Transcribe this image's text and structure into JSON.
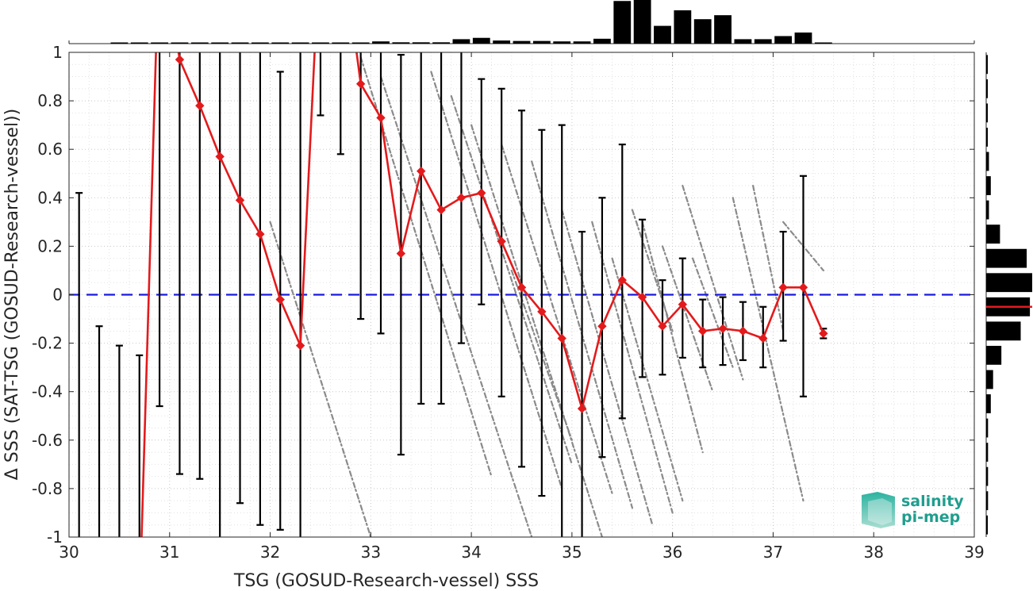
{
  "chart_data": {
    "type": "line",
    "xlabel": "TSG (GOSUD-Research-vessel) SSS",
    "ylabel": "Δ SSS (SAT-TSG (GOSUD-Research-vessel))",
    "xlim": [
      30,
      39
    ],
    "ylim": [
      -1,
      1
    ],
    "xticks": [
      "30",
      "31",
      "32",
      "33",
      "34",
      "35",
      "36",
      "37",
      "38",
      "39"
    ],
    "yticks": [
      "-1",
      "-0.8",
      "-0.6",
      "-0.4",
      "-0.2",
      "0",
      "0.2",
      "0.4",
      "0.6",
      "0.8",
      "1"
    ],
    "grid": true,
    "zero_line": {
      "y": 0,
      "color": "#1a1adb",
      "style": "dashed"
    },
    "series": [
      {
        "color": "#e31a1c",
        "marker": "diamond",
        "x": [
          30.7,
          30.9,
          31.1,
          31.3,
          31.5,
          31.7,
          31.9,
          32.1,
          32.3,
          32.5,
          32.7,
          32.9,
          33.1,
          33.3,
          33.5,
          33.7,
          33.9,
          34.1,
          34.3,
          34.5,
          34.7,
          34.9,
          35.1,
          35.3,
          35.5,
          35.7,
          35.9,
          36.1,
          36.3,
          36.5,
          36.7,
          36.9,
          37.1,
          37.3,
          37.5
        ],
        "y": [
          -1.3,
          1.5,
          0.97,
          0.78,
          0.57,
          0.39,
          0.25,
          -0.02,
          -0.21,
          1.5,
          1.5,
          0.87,
          0.73,
          0.17,
          0.51,
          0.35,
          0.4,
          0.42,
          0.22,
          0.03,
          -0.07,
          -0.18,
          -0.47,
          -0.13,
          0.06,
          -0.01,
          -0.13,
          -0.04,
          -0.15,
          -0.14,
          -0.15,
          -0.18,
          0.03,
          0.03,
          -0.16
        ]
      }
    ],
    "error_bars": [
      {
        "x": 30.1,
        "low": -1.0,
        "high": 0.42
      },
      {
        "x": 30.3,
        "low": -1.0,
        "high": -0.13
      },
      {
        "x": 30.5,
        "low": -1.0,
        "high": -0.21
      },
      {
        "x": 30.7,
        "low": -1.0,
        "high": -0.25
      },
      {
        "x": 30.9,
        "low": -0.46,
        "high": 1.0
      },
      {
        "x": 31.1,
        "low": -0.74,
        "high": 1.0
      },
      {
        "x": 31.3,
        "low": -0.76,
        "high": 1.0
      },
      {
        "x": 31.5,
        "low": -1.0,
        "high": 1.0
      },
      {
        "x": 31.7,
        "low": -0.86,
        "high": 1.0
      },
      {
        "x": 31.9,
        "low": -0.95,
        "high": 1.0
      },
      {
        "x": 32.1,
        "low": -0.97,
        "high": 0.92
      },
      {
        "x": 32.3,
        "low": -1.0,
        "high": 1.0
      },
      {
        "x": 32.5,
        "low": 0.74,
        "high": 1.0
      },
      {
        "x": 32.7,
        "low": 0.58,
        "high": 1.0
      },
      {
        "x": 32.9,
        "low": -0.1,
        "high": 1.0
      },
      {
        "x": 33.1,
        "low": -0.16,
        "high": 1.0
      },
      {
        "x": 33.3,
        "low": -0.66,
        "high": 0.99
      },
      {
        "x": 33.5,
        "low": -0.45,
        "high": 1.0
      },
      {
        "x": 33.7,
        "low": -0.45,
        "high": 1.0
      },
      {
        "x": 33.9,
        "low": -0.2,
        "high": 1.0
      },
      {
        "x": 34.1,
        "low": -0.04,
        "high": 0.89
      },
      {
        "x": 34.3,
        "low": -0.42,
        "high": 0.85
      },
      {
        "x": 34.5,
        "low": -0.71,
        "high": 0.76
      },
      {
        "x": 34.7,
        "low": -0.83,
        "high": 0.68
      },
      {
        "x": 34.9,
        "low": -1.0,
        "high": 0.7
      },
      {
        "x": 35.1,
        "low": -1.0,
        "high": 0.26
      },
      {
        "x": 35.3,
        "low": -0.67,
        "high": 0.4
      },
      {
        "x": 35.5,
        "low": -0.51,
        "high": 0.62
      },
      {
        "x": 35.7,
        "low": -0.34,
        "high": 0.31
      },
      {
        "x": 35.9,
        "low": -0.33,
        "high": 0.06
      },
      {
        "x": 36.1,
        "low": -0.26,
        "high": 0.15
      },
      {
        "x": 36.3,
        "low": -0.3,
        "high": -0.02
      },
      {
        "x": 36.5,
        "low": -0.29,
        "high": -0.01
      },
      {
        "x": 36.7,
        "low": -0.27,
        "high": -0.03
      },
      {
        "x": 36.9,
        "low": -0.3,
        "high": -0.05
      },
      {
        "x": 37.1,
        "low": -0.19,
        "high": 0.26
      },
      {
        "x": 37.3,
        "low": -0.42,
        "high": 0.49
      },
      {
        "x": 37.5,
        "low": -0.18,
        "high": -0.14
      }
    ],
    "scatter_streaks": [
      {
        "x1": 32.0,
        "y1": 0.3,
        "x2": 33.0,
        "y2": -1.0
      },
      {
        "x1": 32.9,
        "y1": 0.98,
        "x2": 34.2,
        "y2": -0.75
      },
      {
        "x1": 33.1,
        "y1": 0.9,
        "x2": 34.6,
        "y2": -1.0
      },
      {
        "x1": 33.6,
        "y1": 0.92,
        "x2": 34.9,
        "y2": -0.8
      },
      {
        "x1": 33.8,
        "y1": 0.82,
        "x2": 35.0,
        "y2": -0.7
      },
      {
        "x1": 34.0,
        "y1": 0.7,
        "x2": 35.3,
        "y2": -1.0
      },
      {
        "x1": 34.3,
        "y1": 0.62,
        "x2": 35.4,
        "y2": -0.82
      },
      {
        "x1": 34.6,
        "y1": 0.55,
        "x2": 35.6,
        "y2": -0.88
      },
      {
        "x1": 34.9,
        "y1": 0.35,
        "x2": 35.8,
        "y2": -0.95
      },
      {
        "x1": 35.2,
        "y1": 0.3,
        "x2": 36.0,
        "y2": -0.9
      },
      {
        "x1": 35.4,
        "y1": 0.15,
        "x2": 36.1,
        "y2": -0.85
      },
      {
        "x1": 35.7,
        "y1": 0.3,
        "x2": 36.3,
        "y2": -0.65
      },
      {
        "x1": 35.9,
        "y1": 0.2,
        "x2": 36.4,
        "y2": -0.4
      },
      {
        "x1": 36.1,
        "y1": 0.45,
        "x2": 36.7,
        "y2": -0.35
      },
      {
        "x1": 36.2,
        "y1": 0.15,
        "x2": 36.6,
        "y2": -0.3
      },
      {
        "x1": 36.6,
        "y1": 0.4,
        "x2": 37.3,
        "y2": -0.85
      },
      {
        "x1": 36.8,
        "y1": 0.45,
        "x2": 37.1,
        "y2": -0.15
      },
      {
        "x1": 37.1,
        "y1": 0.3,
        "x2": 37.5,
        "y2": 0.1
      },
      {
        "x1": 35.6,
        "y1": 0.35,
        "x2": 36.0,
        "y2": -0.15
      },
      {
        "x1": 34.4,
        "y1": 0.1,
        "x2": 35.0,
        "y2": -0.6
      }
    ],
    "histogram_top": {
      "bin_centers": [
        30.5,
        30.7,
        30.9,
        31.1,
        31.3,
        31.5,
        31.7,
        31.9,
        32.1,
        32.3,
        32.5,
        32.7,
        32.9,
        33.1,
        33.3,
        33.5,
        33.7,
        33.9,
        34.1,
        34.3,
        34.5,
        34.7,
        34.9,
        35.1,
        35.3,
        35.5,
        35.7,
        35.9,
        36.1,
        36.3,
        36.5,
        36.7,
        36.9,
        37.1,
        37.3,
        37.5
      ],
      "counts": [
        0.01,
        0.01,
        0.01,
        0.01,
        0.01,
        0.01,
        0.01,
        0.01,
        0.01,
        0.01,
        0.01,
        0.01,
        0.01,
        0.05,
        0.03,
        0.03,
        0.03,
        0.1,
        0.13,
        0.07,
        0.06,
        0.06,
        0.05,
        0.05,
        0.11,
        0.96,
        1.0,
        0.4,
        0.75,
        0.55,
        0.64,
        0.1,
        0.1,
        0.17,
        0.25,
        0.02
      ]
    },
    "histogram_right": {
      "bin_centers": [
        0.95,
        0.85,
        0.75,
        0.65,
        0.55,
        0.45,
        0.35,
        0.25,
        0.15,
        0.05,
        -0.05,
        -0.15,
        -0.25,
        -0.35,
        -0.45,
        -0.55,
        -0.65,
        -0.75,
        -0.85,
        -0.95
      ],
      "counts": [
        0.02,
        0.03,
        0.03,
        0.03,
        0.06,
        0.1,
        0.06,
        0.3,
        0.88,
        1.0,
        0.95,
        0.75,
        0.33,
        0.15,
        0.1,
        0.04,
        0.04,
        0.04,
        0.04,
        0.03
      ],
      "mean_line": -0.05
    }
  },
  "logo": {
    "line1": "salinity",
    "line2": "pi-mep",
    "color": "#1f9e8e"
  }
}
